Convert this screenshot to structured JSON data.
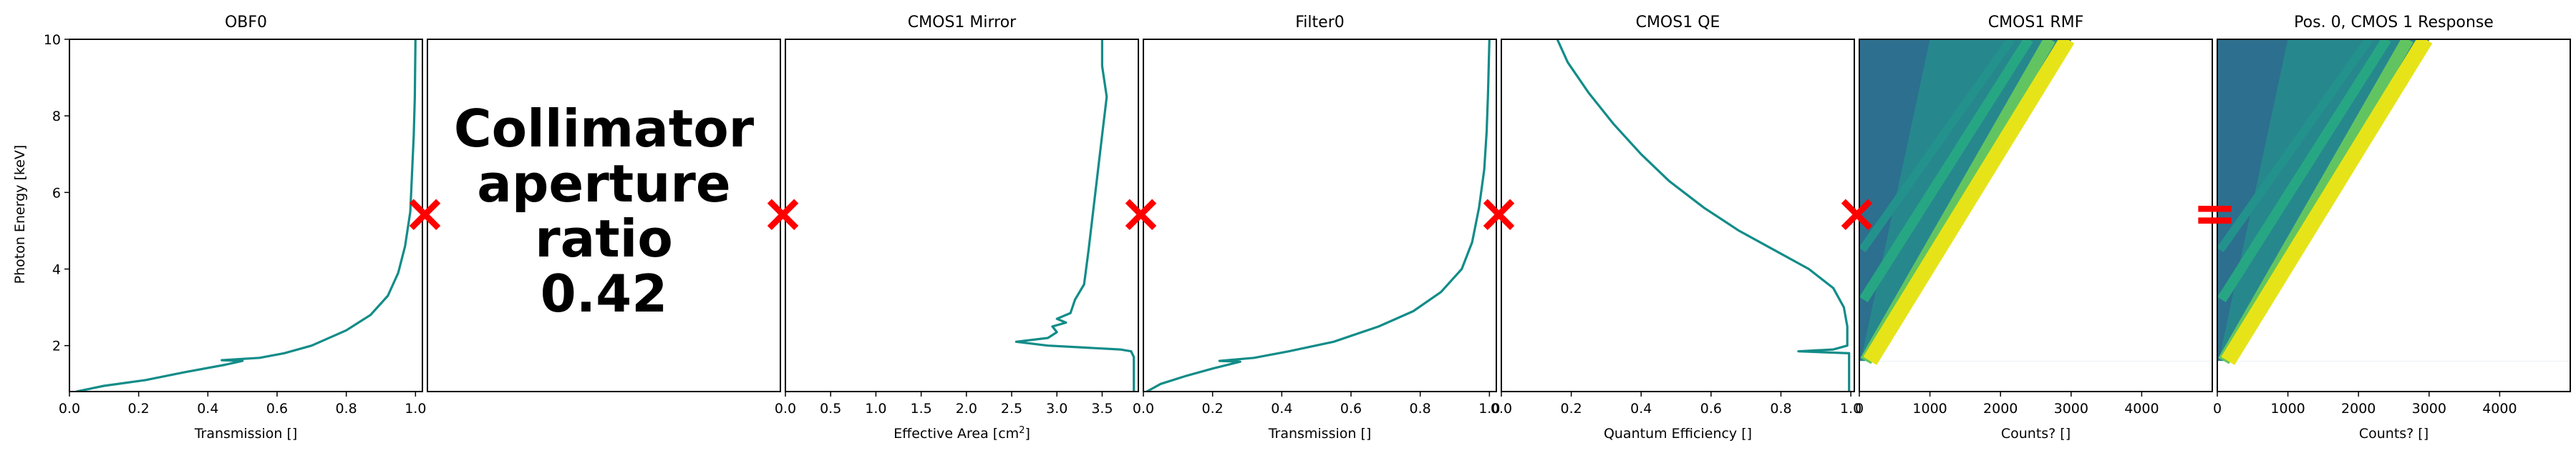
{
  "figure": {
    "ylabel": "Photon Energy [keV]",
    "yticks": [
      "2",
      "4",
      "6",
      "8",
      "10"
    ],
    "ylim": [
      0.8,
      10
    ],
    "line_color": "#128c88",
    "marker_color": "#ff0000",
    "colormap": [
      "#3b4f8a",
      "#2c7391",
      "#23908d",
      "#27a683",
      "#53c06a",
      "#a0d63e",
      "#e6e419"
    ]
  },
  "chart_data": [
    {
      "type": "line",
      "title": "OBF0",
      "xlabel": "Transmission []",
      "xlim": [
        0,
        1.02
      ],
      "xticks": [
        "0.0",
        "0.2",
        "0.4",
        "0.6",
        "0.8",
        "1.0"
      ],
      "series": [
        {
          "points": [
            [
              0.02,
              0.8
            ],
            [
              0.1,
              0.95
            ],
            [
              0.22,
              1.1
            ],
            [
              0.33,
              1.3
            ],
            [
              0.45,
              1.5
            ],
            [
              0.5,
              1.6
            ],
            [
              0.44,
              1.62
            ],
            [
              0.55,
              1.68
            ],
            [
              0.62,
              1.8
            ],
            [
              0.7,
              2.0
            ],
            [
              0.8,
              2.4
            ],
            [
              0.87,
              2.8
            ],
            [
              0.92,
              3.3
            ],
            [
              0.95,
              3.9
            ],
            [
              0.97,
              4.6
            ],
            [
              0.985,
              5.5
            ],
            [
              0.99,
              6.5
            ],
            [
              0.995,
              7.5
            ],
            [
              0.998,
              8.5
            ],
            [
              1.0,
              10
            ]
          ]
        }
      ]
    },
    {
      "type": "text",
      "title": "",
      "annotation": [
        "Collimator",
        "aperture",
        "ratio",
        "0.42"
      ],
      "value": 0.42
    },
    {
      "type": "line",
      "title": "CMOS1 Mirror",
      "xlabel": "Effective Area [cm",
      "xlabel_sup": "2",
      "xlabel_end": "]",
      "xlim": [
        0,
        3.9
      ],
      "xticks": [
        "0.0",
        "0.5",
        "1.0",
        "1.5",
        "2.0",
        "2.5",
        "3.0",
        "3.5"
      ],
      "series": [
        {
          "points": [
            [
              3.85,
              0.8
            ],
            [
              3.85,
              1.7
            ],
            [
              3.82,
              1.85
            ],
            [
              3.7,
              1.9
            ],
            [
              3.3,
              1.95
            ],
            [
              2.9,
              2.0
            ],
            [
              2.55,
              2.1
            ],
            [
              2.9,
              2.2
            ],
            [
              3.0,
              2.35
            ],
            [
              2.95,
              2.5
            ],
            [
              3.1,
              2.6
            ],
            [
              3.0,
              2.7
            ],
            [
              3.15,
              2.85
            ],
            [
              3.2,
              3.2
            ],
            [
              3.3,
              3.6
            ],
            [
              3.35,
              4.5
            ],
            [
              3.4,
              5.5
            ],
            [
              3.45,
              6.5
            ],
            [
              3.5,
              7.5
            ],
            [
              3.55,
              8.5
            ],
            [
              3.5,
              9.3
            ],
            [
              3.5,
              10
            ]
          ]
        }
      ]
    },
    {
      "type": "line",
      "title": "Filter0",
      "xlabel": "Transmission []",
      "xlim": [
        0,
        1.02
      ],
      "xticks": [
        "0.0",
        "0.2",
        "0.4",
        "0.6",
        "0.8",
        "1.0"
      ],
      "series": [
        {
          "points": [
            [
              0.01,
              0.8
            ],
            [
              0.05,
              1.0
            ],
            [
              0.12,
              1.2
            ],
            [
              0.2,
              1.4
            ],
            [
              0.28,
              1.58
            ],
            [
              0.22,
              1.6
            ],
            [
              0.32,
              1.68
            ],
            [
              0.42,
              1.85
            ],
            [
              0.55,
              2.1
            ],
            [
              0.68,
              2.5
            ],
            [
              0.78,
              2.9
            ],
            [
              0.86,
              3.4
            ],
            [
              0.92,
              4.0
            ],
            [
              0.95,
              4.7
            ],
            [
              0.97,
              5.6
            ],
            [
              0.985,
              6.6
            ],
            [
              0.992,
              7.6
            ],
            [
              0.996,
              8.6
            ],
            [
              1.0,
              10
            ]
          ]
        }
      ]
    },
    {
      "type": "line",
      "title": "CMOS1 QE",
      "xlabel": "Quantum Efficiency []",
      "xlim": [
        0,
        1.01
      ],
      "xticks": [
        "0.0",
        "0.2",
        "0.4",
        "0.6",
        "0.8",
        "1.0"
      ],
      "series": [
        {
          "points": [
            [
              0.995,
              0.8
            ],
            [
              0.995,
              1.8
            ],
            [
              0.85,
              1.85
            ],
            [
              0.95,
              1.9
            ],
            [
              0.99,
              2.0
            ],
            [
              0.99,
              2.5
            ],
            [
              0.98,
              3.0
            ],
            [
              0.95,
              3.5
            ],
            [
              0.88,
              4.0
            ],
            [
              0.78,
              4.5
            ],
            [
              0.68,
              5.0
            ],
            [
              0.58,
              5.6
            ],
            [
              0.48,
              6.3
            ],
            [
              0.4,
              7.0
            ],
            [
              0.32,
              7.8
            ],
            [
              0.25,
              8.6
            ],
            [
              0.19,
              9.4
            ],
            [
              0.16,
              10
            ]
          ]
        }
      ]
    },
    {
      "type": "heatmap",
      "title": "CMOS1 RMF",
      "xlabel": "Counts? []",
      "xlim": [
        0,
        5000
      ],
      "xticks": [
        "0",
        "1000",
        "2000",
        "3000",
        "4000"
      ],
      "ridges": [
        {
          "from": [
            150,
            1.6
          ],
          "to": [
            2950,
            10
          ],
          "intensity": 1.0
        },
        {
          "from": [
            90,
            1.6
          ],
          "to": [
            2700,
            10
          ],
          "intensity": 0.7
        },
        {
          "from": [
            60,
            3.2
          ],
          "to": [
            2400,
            10
          ],
          "intensity": 0.5
        },
        {
          "from": [
            40,
            4.5
          ],
          "to": [
            2150,
            10
          ],
          "intensity": 0.35
        }
      ]
    },
    {
      "type": "heatmap",
      "title": "Pos. 0, CMOS 1 Response",
      "xlabel": "Counts? []",
      "xlim": [
        0,
        5000
      ],
      "xticks": [
        "0",
        "1000",
        "2000",
        "3000",
        "4000"
      ],
      "ridges": [
        {
          "from": [
            150,
            1.6
          ],
          "to": [
            2950,
            10
          ],
          "intensity": 1.0
        },
        {
          "from": [
            90,
            1.6
          ],
          "to": [
            2700,
            10
          ],
          "intensity": 0.7
        },
        {
          "from": [
            60,
            3.2
          ],
          "to": [
            2400,
            10
          ],
          "intensity": 0.5
        },
        {
          "from": [
            40,
            4.5
          ],
          "to": [
            2150,
            10
          ],
          "intensity": 0.35
        }
      ]
    }
  ],
  "operators": [
    "×",
    "×",
    "×",
    "×",
    "×",
    "="
  ]
}
